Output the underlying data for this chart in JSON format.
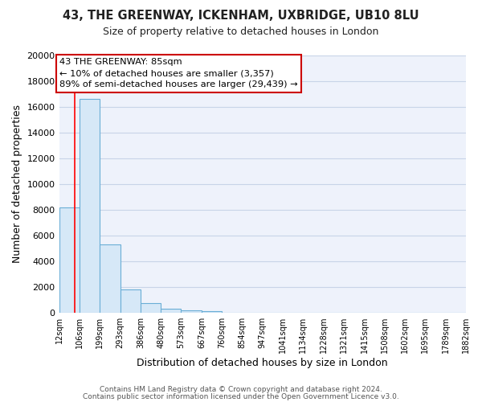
{
  "title1": "43, THE GREENWAY, ICKENHAM, UXBRIDGE, UB10 8LU",
  "title2": "Size of property relative to detached houses in London",
  "xlabel": "Distribution of detached houses by size in London",
  "ylabel": "Number of detached properties",
  "bar_edges": [
    12,
    106,
    199,
    293,
    386,
    480,
    573,
    667,
    760,
    854,
    947,
    1041,
    1134,
    1228,
    1321,
    1415,
    1508,
    1602,
    1695,
    1789,
    1882
  ],
  "bar_heights": [
    8200,
    16600,
    5300,
    1800,
    750,
    300,
    150,
    100,
    0,
    0,
    0,
    0,
    0,
    0,
    0,
    0,
    0,
    0,
    0,
    0
  ],
  "bar_color": "#d6e8f7",
  "bar_edgecolor": "#6aaed6",
  "red_line_x": 85,
  "annotation_title": "43 THE GREENWAY: 85sqm",
  "annotation_line1": "← 10% of detached houses are smaller (3,357)",
  "annotation_line2": "89% of semi-detached houses are larger (29,439) →",
  "annotation_box_edgecolor": "#cc0000",
  "ylim": [
    0,
    20000
  ],
  "yticks": [
    0,
    2000,
    4000,
    6000,
    8000,
    10000,
    12000,
    14000,
    16000,
    18000,
    20000
  ],
  "xtick_labels": [
    "12sqm",
    "106sqm",
    "199sqm",
    "293sqm",
    "386sqm",
    "480sqm",
    "573sqm",
    "667sqm",
    "760sqm",
    "854sqm",
    "947sqm",
    "1041sqm",
    "1134sqm",
    "1228sqm",
    "1321sqm",
    "1415sqm",
    "1508sqm",
    "1602sqm",
    "1695sqm",
    "1789sqm",
    "1882sqm"
  ],
  "footer1": "Contains HM Land Registry data © Crown copyright and database right 2024.",
  "footer2": "Contains public sector information licensed under the Open Government Licence v3.0.",
  "bg_color": "#ffffff",
  "plot_bg_color": "#eef2fb",
  "grid_color": "#c8d4e8",
  "title1_fontsize": 10.5,
  "title2_fontsize": 9
}
